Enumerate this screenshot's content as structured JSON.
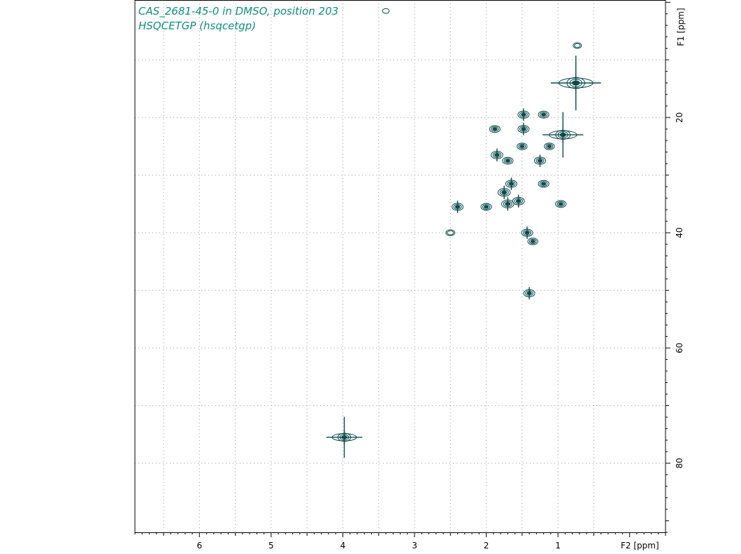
{
  "colors": {
    "title": "#0f8f7a",
    "contour": "#0b4a4a",
    "grid": "#9a9a9a",
    "axis": "#000000"
  },
  "chart_data": {
    "type": "scatter",
    "subtype": "2d-nmr-contour",
    "title": "CAS_2681-45-0 in DMSO, position 203",
    "subtitle": "HSQCETGP (hsqcetgp)",
    "xlabel": "F2 [ppm]",
    "ylabel": "F1 [ppm]",
    "xlim": [
      6.9,
      -0.5
    ],
    "ylim": [
      -0.4,
      92
    ],
    "x_reversed": true,
    "y_axis_side": "right",
    "xticks": [
      6,
      5,
      4,
      3,
      2,
      1
    ],
    "yticks": [
      20,
      40,
      60,
      80
    ],
    "grid": true,
    "grid_x": [
      6.5,
      6,
      5.5,
      5,
      4.5,
      4,
      3.5,
      3,
      2.5,
      2,
      1.5,
      1,
      0.5
    ],
    "grid_y": [
      10,
      20,
      30,
      40,
      50,
      60,
      70,
      80
    ],
    "peaks": [
      {
        "x": 3.4,
        "y": 1.5,
        "size": 0.2
      },
      {
        "x": 0.73,
        "y": 7.5,
        "size": 0.5
      },
      {
        "x": 0.75,
        "y": 14.0,
        "size": 2.2,
        "cross": true
      },
      {
        "x": 1.48,
        "y": 19.5,
        "size": 1
      },
      {
        "x": 1.2,
        "y": 19.5,
        "size": 0.9
      },
      {
        "x": 1.88,
        "y": 22.0,
        "size": 0.9
      },
      {
        "x": 1.48,
        "y": 22.0,
        "size": 1
      },
      {
        "x": 0.93,
        "y": 23.0,
        "size": 1.6,
        "cross": true
      },
      {
        "x": 1.5,
        "y": 25.0,
        "size": 0.8
      },
      {
        "x": 1.12,
        "y": 25.0,
        "size": 0.8
      },
      {
        "x": 1.85,
        "y": 26.5,
        "size": 1.1
      },
      {
        "x": 1.7,
        "y": 27.5,
        "size": 0.9
      },
      {
        "x": 1.25,
        "y": 27.5,
        "size": 1
      },
      {
        "x": 1.65,
        "y": 31.5,
        "size": 1
      },
      {
        "x": 1.2,
        "y": 31.5,
        "size": 0.9
      },
      {
        "x": 1.75,
        "y": 33.0,
        "size": 1.2
      },
      {
        "x": 1.55,
        "y": 34.5,
        "size": 1.1
      },
      {
        "x": 2.4,
        "y": 35.5,
        "size": 1
      },
      {
        "x": 2.0,
        "y": 35.5,
        "size": 0.9
      },
      {
        "x": 1.7,
        "y": 35.0,
        "size": 1.2
      },
      {
        "x": 0.96,
        "y": 35.0,
        "size": 0.9
      },
      {
        "x": 2.5,
        "y": 40.0,
        "size": 0.6
      },
      {
        "x": 1.43,
        "y": 40.0,
        "size": 1
      },
      {
        "x": 1.35,
        "y": 41.5,
        "size": 0.8
      },
      {
        "x": 1.4,
        "y": 50.5,
        "size": 1
      },
      {
        "x": 3.98,
        "y": 75.5,
        "size": 1.3,
        "cross": true
      }
    ]
  }
}
